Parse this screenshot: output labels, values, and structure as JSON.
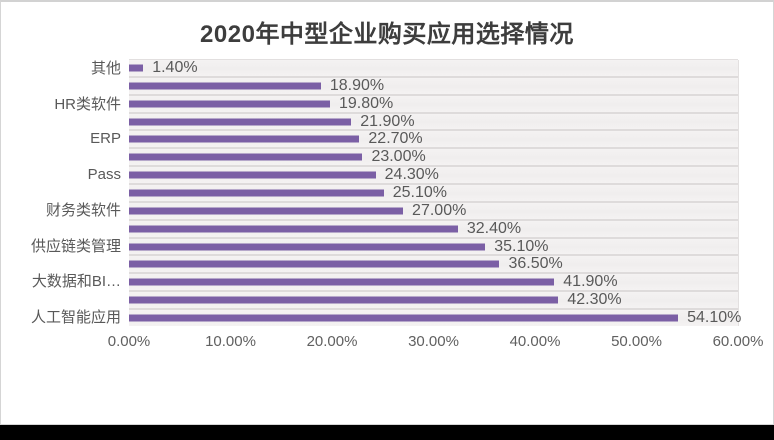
{
  "chart_data": {
    "type": "bar",
    "orientation": "horizontal",
    "title": "2020年中型企业购买应用选择情况",
    "points": [
      {
        "category": "其他",
        "value": 1.4,
        "value_label": "1.40%"
      },
      {
        "category": "",
        "value": 18.9,
        "value_label": "18.90%"
      },
      {
        "category": "HR类软件",
        "value": 19.8,
        "value_label": "19.80%"
      },
      {
        "category": "",
        "value": 21.9,
        "value_label": "21.90%"
      },
      {
        "category": "ERP",
        "value": 22.7,
        "value_label": "22.70%"
      },
      {
        "category": "",
        "value": 23.0,
        "value_label": "23.00%"
      },
      {
        "category": "Pass",
        "value": 24.3,
        "value_label": "24.30%"
      },
      {
        "category": "",
        "value": 25.1,
        "value_label": "25.10%"
      },
      {
        "category": "财务类软件",
        "value": 27.0,
        "value_label": "27.00%"
      },
      {
        "category": "",
        "value": 32.4,
        "value_label": "32.40%"
      },
      {
        "category": "供应链类管理",
        "value": 35.1,
        "value_label": "35.10%"
      },
      {
        "category": "",
        "value": 36.5,
        "value_label": "36.50%"
      },
      {
        "category": "大数据和BI…",
        "value": 41.9,
        "value_label": "41.90%"
      },
      {
        "category": "",
        "value": 42.3,
        "value_label": "42.30%"
      },
      {
        "category": "人工智能应用",
        "value": 54.1,
        "value_label": "54.10%"
      }
    ],
    "x_ticks": [
      "0.00%",
      "10.00%",
      "20.00%",
      "30.00%",
      "40.00%",
      "50.00%",
      "60.00%"
    ],
    "xlim": [
      0,
      60
    ],
    "grid": true,
    "legend": "none",
    "colors": {
      "bar": "#7b5fa5",
      "plot_background": "#f1efef",
      "gridline": "#e3e0e0",
      "row_separator": "#dedbdb",
      "title_text": "#3d3d3d",
      "label_text": "#595959",
      "bottom_strip": "#000000"
    }
  }
}
